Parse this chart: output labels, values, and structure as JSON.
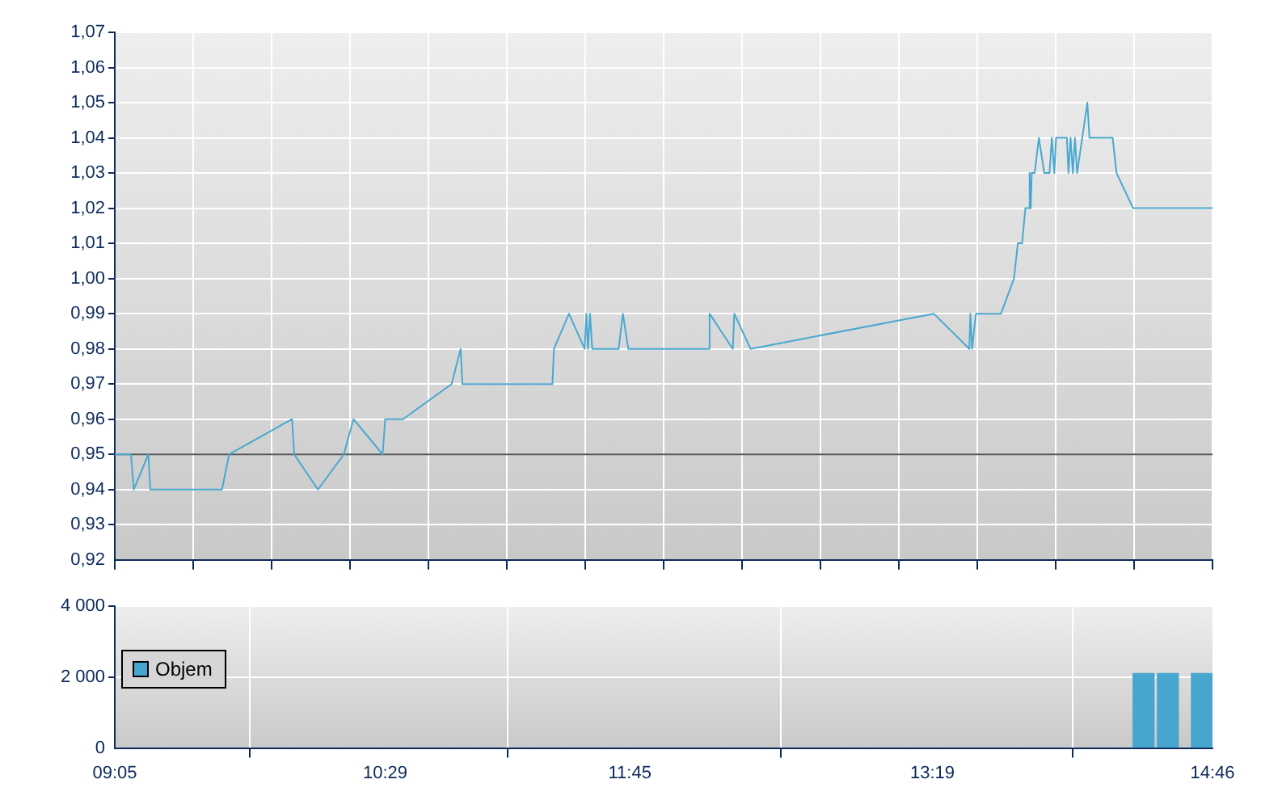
{
  "chart_data": [
    {
      "type": "line",
      "x": [
        9.083,
        9.167,
        9.181,
        9.257,
        9.267,
        9.638,
        9.675,
        10.001,
        10.012,
        10.135,
        10.269,
        10.319,
        10.47,
        10.483,
        10.575,
        10.827,
        10.874,
        10.883,
        11.349,
        11.357,
        11.435,
        11.516,
        11.525,
        11.533,
        11.544,
        11.555,
        11.692,
        11.714,
        11.742,
        12.158,
        12.163,
        12.283,
        12.291,
        12.375,
        13.324,
        13.508,
        13.513,
        13.522,
        13.542,
        13.672,
        13.739,
        13.759,
        13.781,
        13.798,
        13.818,
        13.82,
        13.826,
        13.831,
        13.846,
        13.868,
        13.896,
        13.923,
        13.935,
        13.948,
        13.957,
        14.013,
        14.021,
        14.032,
        14.044,
        14.055,
        14.066,
        14.119,
        14.13,
        14.25,
        14.27,
        14.356,
        14.767
      ],
      "series": [
        {
          "color": "#4aa8d0",
          "values": [
            0.95,
            0.95,
            0.94,
            0.95,
            0.94,
            0.94,
            0.95,
            0.96,
            0.95,
            0.94,
            0.95,
            0.96,
            0.95,
            0.96,
            0.96,
            0.97,
            0.98,
            0.97,
            0.97,
            0.98,
            0.99,
            0.98,
            0.99,
            0.98,
            0.99,
            0.98,
            0.98,
            0.99,
            0.98,
            0.98,
            0.99,
            0.98,
            0.99,
            0.98,
            0.99,
            0.98,
            0.99,
            0.98,
            0.99,
            0.99,
            1.0,
            1.01,
            1.01,
            1.02,
            1.02,
            1.03,
            1.02,
            1.03,
            1.03,
            1.04,
            1.03,
            1.03,
            1.04,
            1.03,
            1.04,
            1.04,
            1.03,
            1.04,
            1.03,
            1.04,
            1.03,
            1.05,
            1.04,
            1.04,
            1.03,
            1.02,
            1.02
          ]
        }
      ],
      "xlim": [
        9.083,
        14.767
      ],
      "xticks": [
        {
          "value": 9.083,
          "label": null
        },
        {
          "value": 9.489,
          "label": null
        },
        {
          "value": 9.895,
          "label": null
        },
        {
          "value": 10.301,
          "label": null
        },
        {
          "value": 10.707,
          "label": null
        },
        {
          "value": 11.113,
          "label": null
        },
        {
          "value": 11.519,
          "label": null
        },
        {
          "value": 11.925,
          "label": null
        },
        {
          "value": 12.331,
          "label": null
        },
        {
          "value": 12.737,
          "label": null
        },
        {
          "value": 13.143,
          "label": null
        },
        {
          "value": 13.549,
          "label": null
        },
        {
          "value": 13.955,
          "label": null
        },
        {
          "value": 14.361,
          "label": null
        },
        {
          "value": 14.767,
          "label": null
        }
      ],
      "ylim": [
        0.92,
        1.07
      ],
      "yticks": [
        {
          "value": 0.92,
          "label": "0,92"
        },
        {
          "value": 0.93,
          "label": "0,93"
        },
        {
          "value": 0.94,
          "label": "0,94"
        },
        {
          "value": 0.95,
          "label": "0,95"
        },
        {
          "value": 0.96,
          "label": "0,96"
        },
        {
          "value": 0.97,
          "label": "0,97"
        },
        {
          "value": 0.98,
          "label": "0,98"
        },
        {
          "value": 0.99,
          "label": "0,99"
        },
        {
          "value": 1.0,
          "label": "1,00"
        },
        {
          "value": 1.01,
          "label": "1,01"
        },
        {
          "value": 1.02,
          "label": "1,02"
        },
        {
          "value": 1.03,
          "label": "1,03"
        },
        {
          "value": 1.04,
          "label": "1,04"
        },
        {
          "value": 1.05,
          "label": "1,05"
        },
        {
          "value": 1.06,
          "label": "1,06"
        },
        {
          "value": 1.07,
          "label": "1,07"
        }
      ],
      "ref_lines": [
        {
          "axis": "y",
          "value": 0.95,
          "color": "#555555"
        }
      ],
      "grid": true,
      "tick_labels": "y"
    },
    {
      "type": "bar",
      "x": [
        14.41,
        14.536,
        14.712
      ],
      "series": [
        {
          "name": "Objem",
          "color": "#47a6cf",
          "values": [
            2100,
            2100,
            2100
          ]
        }
      ],
      "xlim": [
        9.083,
        14.767
      ],
      "xticks": [
        {
          "value": 9.083,
          "label": "09:05"
        },
        {
          "value": 10.483,
          "label": "10:29"
        },
        {
          "value": 11.75,
          "label": "11:45"
        },
        {
          "value": 13.317,
          "label": "13:19"
        },
        {
          "value": 14.767,
          "label": "14:46"
        }
      ],
      "ylim": [
        0,
        4000
      ],
      "yticks": [
        0,
        {
          "value": 2000,
          "label": "2 000"
        },
        {
          "value": 4000,
          "label": "4 000"
        }
      ],
      "grid": true,
      "legend": "left"
    }
  ]
}
